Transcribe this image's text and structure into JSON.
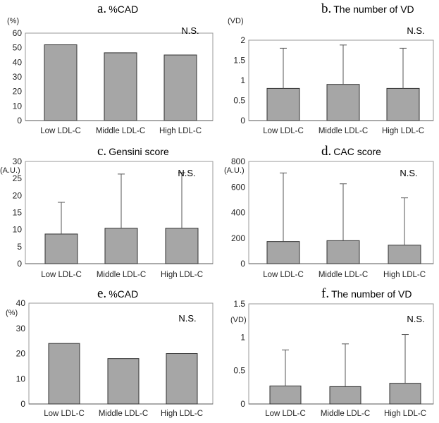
{
  "chart_data": [
    {
      "type": "bar",
      "panel_letter": "a.",
      "title": "%CAD",
      "ylabel": "(%)",
      "categories": [
        "Low LDL-C",
        "Middle LDL-C",
        "High LDL-C"
      ],
      "values": [
        52,
        46.5,
        45
      ],
      "error_bars": null,
      "ylim": [
        0,
        60
      ],
      "yticks": [
        0,
        10,
        20,
        30,
        40,
        50,
        60
      ],
      "yticks_labels": [
        "0",
        "10",
        "20",
        "30",
        "40",
        "50",
        "60"
      ],
      "annotation": "N.S.",
      "bar_color": "#a6a6a6",
      "grid": false
    },
    {
      "type": "bar",
      "panel_letter": "b.",
      "title": "The number of VD",
      "ylabel": "(VD)",
      "categories": [
        "Low LDL-C",
        "Middle LDL-C",
        "High LDL-C"
      ],
      "values": [
        0.8,
        0.9,
        0.8
      ],
      "error_bars": [
        1.8,
        1.88,
        1.8
      ],
      "ylim": [
        0,
        2
      ],
      "yticks": [
        0,
        0.5,
        1,
        1.5,
        2
      ],
      "yticks_labels": [
        "0",
        "0.5",
        "1",
        "1.5",
        "2"
      ],
      "annotation": "N.S.",
      "bar_color": "#a6a6a6",
      "grid": false
    },
    {
      "type": "bar",
      "panel_letter": "c.",
      "title": "Gensini score",
      "ylabel": "(A.U.)",
      "categories": [
        "Low LDL-C",
        "Middle LDL-C",
        "High LDL-C"
      ],
      "values": [
        8.7,
        10.4,
        10.4
      ],
      "error_bars": [
        18,
        26.3,
        26.7
      ],
      "ylim": [
        0,
        30
      ],
      "yticks": [
        0,
        5,
        10,
        15,
        20,
        25,
        30
      ],
      "yticks_labels": [
        "0",
        "5",
        "10",
        "15",
        "20",
        "25",
        "30"
      ],
      "annotation": "N.S.",
      "bar_color": "#a6a6a6",
      "grid": false
    },
    {
      "type": "bar",
      "panel_letter": "d.",
      "title": "CAC score",
      "ylabel": "(A.U.)",
      "categories": [
        "Low LDL-C",
        "Middle LDL-C",
        "High LDL-C"
      ],
      "values": [
        173,
        180,
        145
      ],
      "error_bars": [
        710,
        625,
        515
      ],
      "ylim": [
        0,
        800
      ],
      "yticks": [
        0,
        200,
        400,
        600,
        800
      ],
      "yticks_labels": [
        "0",
        "200",
        "400",
        "600",
        "800"
      ],
      "annotation": "N.S.",
      "bar_color": "#a6a6a6",
      "grid": false
    },
    {
      "type": "bar",
      "panel_letter": "e.",
      "title": "%CAD",
      "ylabel": "(%)",
      "categories": [
        "Low LDL-C",
        "Middle LDL-C",
        "High LDL-C"
      ],
      "values": [
        24,
        18,
        20
      ],
      "error_bars": null,
      "ylim": [
        0,
        40
      ],
      "yticks": [
        0,
        10,
        20,
        30,
        40
      ],
      "yticks_labels": [
        "0",
        "10",
        "20",
        "30",
        "40"
      ],
      "annotation": "N.S.",
      "bar_color": "#a6a6a6",
      "grid": false
    },
    {
      "type": "bar",
      "panel_letter": "f.",
      "title": "The number of VD",
      "ylabel": "(VD)",
      "categories": [
        "Low LDL-C",
        "Middle LDL-C",
        "High LDL-C"
      ],
      "values": [
        0.27,
        0.26,
        0.31
      ],
      "error_bars": [
        0.81,
        0.9,
        1.04
      ],
      "ylim": [
        0,
        1.5
      ],
      "yticks": [
        0,
        0.5,
        1,
        1.5
      ],
      "yticks_labels": [
        "0",
        "0.5",
        "1",
        "1.5"
      ],
      "annotation": "N.S.",
      "bar_color": "#a6a6a6",
      "grid": false
    }
  ]
}
